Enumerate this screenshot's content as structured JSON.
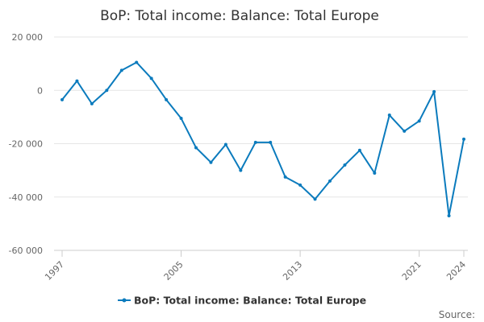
{
  "chart_data": {
    "type": "line",
    "title": "BoP: Total income: Balance: Total Europe",
    "xlabel": "",
    "ylabel": "",
    "x": [
      1997,
      1998,
      1999,
      2000,
      2001,
      2002,
      2003,
      2004,
      2005,
      2006,
      2007,
      2008,
      2009,
      2010,
      2011,
      2012,
      2013,
      2014,
      2015,
      2016,
      2017,
      2018,
      2019,
      2020,
      2021,
      2022,
      2023,
      2024
    ],
    "series": [
      {
        "name": "BoP: Total income: Balance: Total Europe",
        "color": "#0b7bbd",
        "values": [
          -3500,
          3500,
          -5000,
          0,
          7500,
          10500,
          4500,
          -3500,
          -10500,
          -21500,
          -27000,
          -20300,
          -30000,
          -19500,
          -19500,
          -32500,
          -35500,
          -40800,
          -34000,
          -28000,
          -22500,
          -31000,
          -9300,
          -15300,
          -11500,
          -500,
          -47000,
          -18300
        ]
      }
    ],
    "xticks": [
      "1997",
      "2005",
      "2013",
      "2021",
      "2024"
    ],
    "yticks": [
      "20 000",
      "0",
      "-20 000",
      "-40 000",
      "-60 000"
    ],
    "ylim": [
      -60000,
      20000
    ],
    "xlim": [
      1997,
      2024
    ],
    "grid": true,
    "legend_position": "bottom-center",
    "credit": "Source:"
  }
}
